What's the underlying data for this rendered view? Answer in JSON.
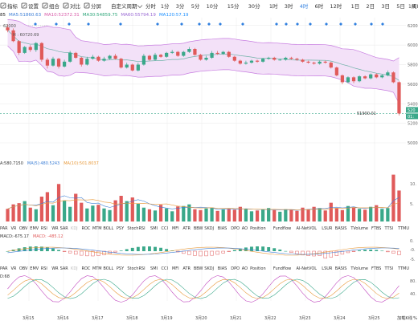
{
  "top_strip": {
    "ma_labels": [
      {
        "text": "85",
        "color": "#1a1a1a"
      },
      {
        "text": "MA5:51860.63",
        "color": "#3d7fd6"
      },
      {
        "text": "MA10:52372.31",
        "color": "#d85aa8"
      },
      {
        "text": "MA30:54859.75",
        "color": "#2ea67a"
      },
      {
        "text": "MA60:55794.19",
        "color": "#9a6ad4"
      },
      {
        "text": "MA120:57.19",
        "color": "#1e90ff"
      }
    ],
    "right_label": "1H"
  },
  "toolbar": {
    "left_items": [
      {
        "name": "indicator-tool",
        "label": "指标",
        "icon": "indicator-icon"
      },
      {
        "name": "settings-tool",
        "label": "设置",
        "icon": "gear-icon"
      },
      {
        "name": "combo-tool",
        "label": "组合",
        "icon": "combo-icon"
      },
      {
        "name": "compare-tool",
        "label": "对比",
        "icon": "compare-icon"
      },
      {
        "name": "split-screen-tool",
        "label": "分屏",
        "icon": "split-screen-icon"
      }
    ],
    "custom_period_label": "自定义周期",
    "periods": [
      "分时",
      "1分",
      "3分",
      "5分",
      "10分",
      "15分",
      "30分",
      "1时",
      "3时",
      "4时",
      "6时",
      "12时",
      "1日",
      "2日",
      "3日",
      "5日",
      "周K",
      "月K",
      "季K"
    ],
    "active_period": "4时"
  },
  "main_chart": {
    "price_axis": [
      "62000",
      "60000",
      "58000",
      "56000",
      "54000",
      "52000",
      "50000"
    ],
    "current_price_tag": "520",
    "countdown_tag": "01:",
    "dotted_price_label": "62000",
    "high_annotation": "H : 60720.69",
    "low_annotation": "51900.01"
  },
  "volume_panel": {
    "header": [
      {
        "text": "A:580.7150",
        "color": "#333"
      },
      {
        "text": "MA(5):480.5243",
        "color": "#3d7fd6"
      },
      {
        "text": "MA(10):501.8037",
        "color": "#e89a3c"
      }
    ],
    "axis": [
      "10.",
      "5."
    ]
  },
  "macd_panel": {
    "header": [
      {
        "text": "MACD:-675.17",
        "color": "#333"
      },
      {
        "text": "MACD: -485.12",
        "color": "#e05a5a"
      }
    ],
    "axis": [
      "0.",
      "-0.",
      "-5."
    ]
  },
  "kdj_panel": {
    "header_left": "D:68",
    "axis": [
      "80.",
      "40."
    ]
  },
  "indicator_tabs": {
    "row1": [
      "PAR",
      "VR",
      "OBV",
      "EMV",
      "RSI",
      "WR",
      "SAR",
      "KDJ",
      "ROC",
      "MTM",
      "BOLL",
      "PSY",
      "StochRSI",
      "SMI",
      "CCI",
      "MFI",
      "ATR",
      "BBW",
      "SKDJ",
      "BIAS",
      "DPO",
      "AO",
      "Position",
      "Fundflow",
      "AI-NetVOL",
      "LSUR",
      "BASIS",
      "TVolume",
      "FTBS",
      "TTSI",
      "TTMU"
    ],
    "row2": [
      "PAR",
      "VR",
      "OBV",
      "EMV",
      "RSI",
      "WR",
      "SAR",
      "KDJ",
      "ROC",
      "MTM",
      "BOLL",
      "PSY",
      "StochRSI",
      "SMI",
      "CCI",
      "MFI",
      "ATR",
      "BBW",
      "SKDJ",
      "BIAS",
      "DPO",
      "AO",
      "Position",
      "Fundflow",
      "AI-NetVOL",
      "LSUR",
      "BASIS",
      "TVolume",
      "FTBS",
      "TTSI",
      "TTMU"
    ],
    "active": "KDJ"
  },
  "date_axis": [
    "3月15",
    "3月16",
    "3月17",
    "3月18",
    "3月19",
    "3月20",
    "3月21",
    "3月22",
    "3月23",
    "3月24",
    "3月25"
  ],
  "footer_right": {
    "label": "加载K线",
    "value": "%"
  },
  "colors": {
    "up": "#e05a5a",
    "down": "#3aa88a",
    "band_fill": "#f3e1f8",
    "band_line": "#c77de0",
    "mid_line": "#6fb2a8",
    "signal_diamond": "#2f7fe0",
    "grid": "#e9e9e9"
  },
  "chart_data": {
    "type": "candlestick",
    "x": [
      1,
      2,
      3,
      4,
      5,
      6,
      7,
      8,
      9,
      10,
      11,
      12,
      13,
      14,
      15,
      16,
      17,
      18,
      19,
      20,
      21,
      22,
      23,
      24,
      25,
      26,
      27,
      28,
      29,
      30,
      31,
      32,
      33,
      34,
      35,
      36,
      37,
      38,
      39,
      40,
      41,
      42,
      43,
      44,
      45,
      46,
      47,
      48,
      49,
      50,
      51,
      52,
      53,
      54,
      55,
      56,
      57,
      58,
      59,
      60,
      61,
      62,
      63,
      64,
      65,
      66,
      67,
      68,
      69,
      70
    ],
    "open": [
      61800,
      61500,
      60400,
      59200,
      59800,
      59500,
      60200,
      58500,
      57900,
      58600,
      57800,
      58300,
      59200,
      58700,
      58000,
      58600,
      58800,
      58400,
      58600,
      58900,
      58600,
      57700,
      58000,
      57400,
      58000,
      58900,
      58500,
      59000,
      58800,
      59200,
      59300,
      58900,
      59300,
      59600,
      59000,
      58500,
      58700,
      59200,
      59100,
      59300,
      58800,
      58400,
      58100,
      58200,
      58400,
      58300,
      58600,
      58700,
      58500,
      58500,
      58700,
      58600,
      58500,
      58300,
      58200,
      58100,
      58300,
      58200,
      57700,
      56900,
      56200,
      56700,
      56300,
      56800,
      56600,
      57000,
      56700,
      56900,
      57200,
      56200
    ],
    "close": [
      61500,
      60400,
      59200,
      59800,
      59500,
      60200,
      58500,
      57900,
      58600,
      57800,
      58300,
      59200,
      58700,
      58000,
      58600,
      58800,
      58400,
      58600,
      58900,
      58600,
      57700,
      58000,
      57400,
      58000,
      58900,
      58500,
      59000,
      58800,
      59200,
      59300,
      58900,
      59300,
      59600,
      59000,
      58500,
      58700,
      59200,
      59100,
      59300,
      58800,
      58400,
      58100,
      58200,
      58400,
      58300,
      58600,
      58700,
      58500,
      58500,
      58700,
      58600,
      58500,
      58300,
      58200,
      58100,
      58300,
      58200,
      57700,
      56900,
      56200,
      56700,
      56300,
      56800,
      56600,
      57000,
      56700,
      56900,
      57200,
      56200,
      53000
    ],
    "high": [
      62100,
      61700,
      60500,
      59900,
      60000,
      60300,
      60300,
      58700,
      58800,
      58700,
      58500,
      59400,
      59300,
      58800,
      58800,
      59000,
      58900,
      58800,
      59000,
      59100,
      58700,
      58200,
      58100,
      58200,
      59100,
      59000,
      59200,
      59100,
      59300,
      59500,
      59400,
      59400,
      59800,
      59700,
      59100,
      58900,
      59400,
      59400,
      59400,
      59400,
      58900,
      58500,
      58400,
      58500,
      58500,
      58700,
      58800,
      58800,
      58600,
      58800,
      58800,
      58700,
      58600,
      58400,
      58300,
      58400,
      58400,
      58300,
      57800,
      57000,
      56800,
      56800,
      56900,
      56900,
      57100,
      57100,
      57000,
      57400,
      57300,
      56300
    ],
    "low": [
      61300,
      60300,
      59000,
      59100,
      59300,
      59300,
      58300,
      57600,
      57800,
      57600,
      57700,
      58200,
      58600,
      57800,
      57900,
      58500,
      58300,
      58300,
      58500,
      58500,
      57600,
      57600,
      57300,
      57300,
      57900,
      58400,
      58400,
      58700,
      58700,
      59100,
      58800,
      58800,
      59200,
      58900,
      58400,
      58400,
      58600,
      59000,
      59000,
      58700,
      58300,
      58000,
      58000,
      58100,
      58200,
      58200,
      58500,
      58400,
      58400,
      58400,
      58500,
      58400,
      58200,
      58100,
      58000,
      58000,
      58100,
      57600,
      56800,
      56000,
      56100,
      56100,
      56200,
      56500,
      56500,
      56600,
      56600,
      56800,
      56100,
      52800
    ],
    "volume": [
      3.1,
      4.2,
      4.5,
      5.0,
      3.4,
      3.0,
      6.1,
      7.2,
      4.0,
      9.2,
      5.1,
      3.6,
      6.8,
      4.6,
      3.2,
      3.9,
      4.1,
      3.2,
      2.8,
      5.2,
      6.3,
      5.0,
      5.9,
      4.4,
      3.4,
      3.0,
      2.7,
      4.1,
      3.2,
      2.5,
      3.7,
      3.8,
      4.2,
      3.0,
      2.8,
      3.2,
      3.4,
      2.6,
      3.0,
      3.1,
      2.9,
      3.6,
      3.1,
      2.5,
      2.7,
      3.0,
      3.3,
      2.8,
      2.4,
      3.0,
      2.9,
      2.6,
      3.4,
      3.0,
      3.6,
      3.3,
      2.7,
      4.6,
      3.3,
      2.8,
      3.8,
      3.5,
      3.1,
      2.9,
      3.6,
      4.0,
      3.1,
      3.3,
      11.5,
      7.6
    ],
    "ylim": [
      50000,
      62800
    ]
  }
}
